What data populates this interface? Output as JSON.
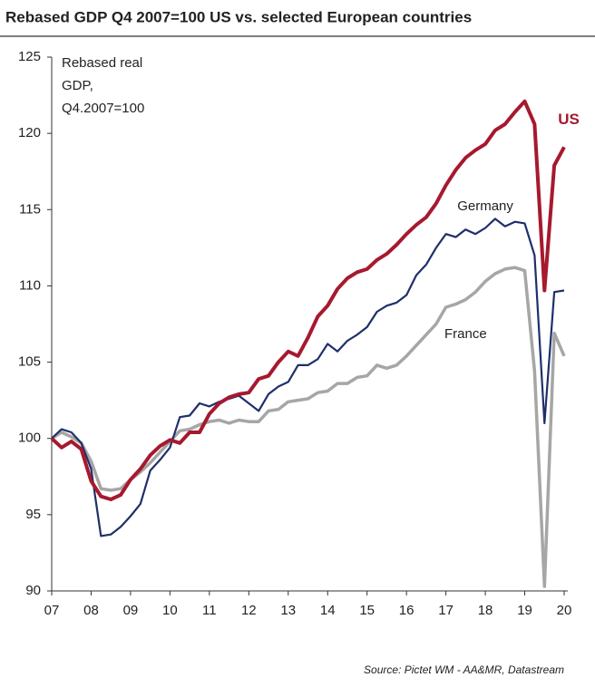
{
  "chart_data": {
    "type": "line",
    "title": "Rebased GDP Q4 2007=100 US vs. selected European countries",
    "ylabel": [
      "Rebased real",
      "GDP,",
      "Q4.2007=100"
    ],
    "source": "Source: Pictet WM - AA&MR, Datastream",
    "x": [
      7,
      7.25,
      7.5,
      7.75,
      8,
      8.25,
      8.5,
      8.75,
      9,
      9.25,
      9.5,
      9.75,
      10,
      10.25,
      10.5,
      10.75,
      11,
      11.25,
      11.5,
      11.75,
      12,
      12.25,
      12.5,
      12.75,
      13,
      13.25,
      13.5,
      13.75,
      14,
      14.25,
      14.5,
      14.75,
      15,
      15.25,
      15.5,
      15.75,
      16,
      16.25,
      16.5,
      16.75,
      17,
      17.25,
      17.5,
      17.75,
      18,
      18.25,
      18.5,
      18.75,
      19,
      19.25,
      19.5,
      19.75,
      20
    ],
    "series": [
      {
        "name": "US",
        "color": "#a6192e",
        "values": [
          100,
          99.4,
          99.8,
          99.3,
          97.2,
          96.2,
          96.0,
          96.3,
          97.3,
          98.0,
          98.9,
          99.5,
          99.9,
          99.7,
          100.4,
          100.4,
          101.6,
          102.3,
          102.7,
          102.9,
          103.0,
          103.9,
          104.1,
          105.0,
          105.7,
          105.4,
          106.6,
          108.0,
          108.7,
          109.8,
          110.5,
          110.9,
          111.1,
          111.7,
          112.1,
          112.7,
          113.4,
          114.0,
          114.5,
          115.4,
          116.6,
          117.6,
          118.4,
          118.9,
          119.3,
          120.2,
          120.6,
          121.4,
          122.1,
          120.6,
          109.7,
          117.9,
          119.1
        ]
      },
      {
        "name": "Germany",
        "color": "#1f2f6b",
        "values": [
          100,
          100.6,
          100.4,
          99.7,
          98.0,
          93.6,
          93.7,
          94.2,
          94.9,
          95.7,
          97.9,
          98.6,
          99.4,
          101.4,
          101.5,
          102.3,
          102.1,
          102.4,
          102.6,
          102.8,
          102.3,
          101.8,
          102.9,
          103.4,
          103.7,
          104.8,
          104.8,
          105.2,
          106.2,
          105.7,
          106.4,
          106.8,
          107.3,
          108.3,
          108.7,
          108.9,
          109.4,
          110.7,
          111.4,
          112.5,
          113.4,
          113.2,
          113.7,
          113.4,
          113.8,
          114.4,
          113.9,
          114.2,
          114.1,
          112.0,
          101.0,
          109.6,
          109.7
        ]
      },
      {
        "name": "France",
        "color": "#a6a6a6",
        "values": [
          100,
          100.4,
          100.1,
          99.7,
          98.5,
          96.7,
          96.6,
          96.7,
          97.3,
          97.8,
          98.4,
          99.1,
          99.8,
          100.5,
          100.6,
          100.9,
          101.1,
          101.2,
          101.0,
          101.2,
          101.1,
          101.1,
          101.8,
          101.9,
          102.4,
          102.5,
          102.6,
          103.0,
          103.1,
          103.6,
          103.6,
          104.0,
          104.1,
          104.8,
          104.6,
          104.8,
          105.4,
          106.1,
          106.8,
          107.5,
          108.6,
          108.8,
          109.1,
          109.6,
          110.3,
          110.8,
          111.1,
          111.2,
          111.0,
          104.4,
          90.3,
          106.9,
          105.4
        ]
      }
    ],
    "xlim": [
      7,
      20
    ],
    "xticks": [
      {
        "value": 7,
        "label": "07"
      },
      {
        "value": 8,
        "label": "08"
      },
      {
        "value": 9,
        "label": "09"
      },
      10,
      11,
      12,
      13,
      14,
      15,
      16,
      17,
      18,
      19,
      20
    ],
    "ylim": [
      90,
      125
    ],
    "yticks": [
      90,
      95,
      100,
      105,
      110,
      115,
      120,
      125
    ]
  }
}
